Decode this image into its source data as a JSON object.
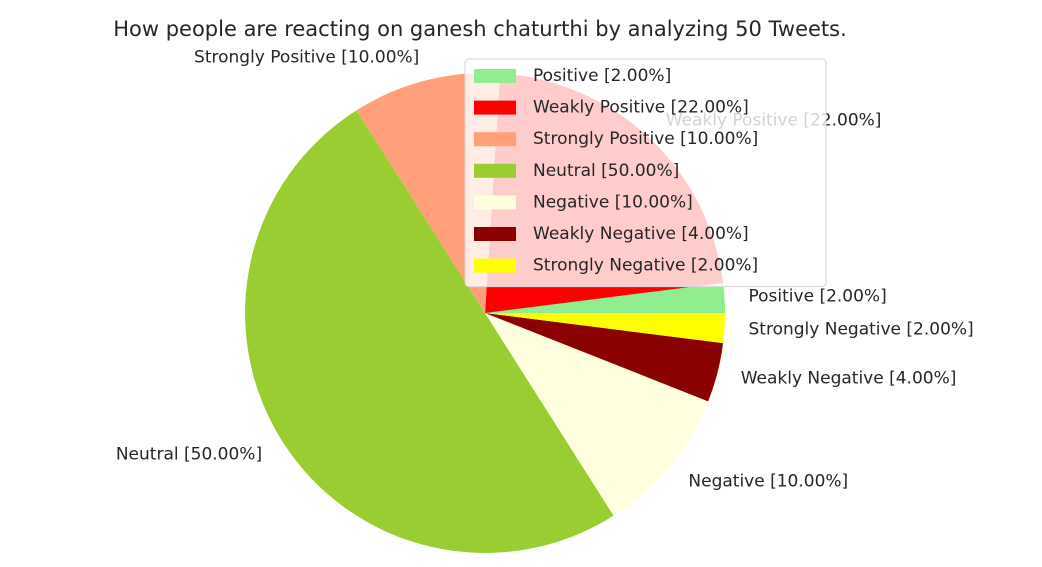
{
  "chart_data": {
    "type": "pie",
    "title": "How people are reacting on ganesh chaturthi by analyzing 50 Tweets.",
    "start_angle_deg": 0,
    "direction": "counterclockwise",
    "legend_position": "upper-right",
    "slices": [
      {
        "label": "Positive [2.00%]",
        "value": 2.0,
        "color": "#90ee90"
      },
      {
        "label": "Weakly Positive [22.00%]",
        "value": 22.0,
        "color": "#ff0000"
      },
      {
        "label": "Strongly Positive [10.00%]",
        "value": 10.0,
        "color": "#ffa07a"
      },
      {
        "label": "Neutral [50.00%]",
        "value": 50.0,
        "color": "#9acd32"
      },
      {
        "label": "Negative [10.00%]",
        "value": 10.0,
        "color": "#ffffe0"
      },
      {
        "label": "Weakly Negative [4.00%]",
        "value": 4.0,
        "color": "#8b0000"
      },
      {
        "label": "Strongly Negative [2.00%]",
        "value": 2.0,
        "color": "#ffff00"
      }
    ],
    "legend": {
      "entries": [
        {
          "label": "Positive [2.00%]",
          "color": "#90ee90"
        },
        {
          "label": "Weakly Positive [22.00%]",
          "color": "#ff0000"
        },
        {
          "label": "Strongly Positive [10.00%]",
          "color": "#ffa07a"
        },
        {
          "label": "Neutral [50.00%]",
          "color": "#9acd32"
        },
        {
          "label": "Negative [10.00%]",
          "color": "#ffffe0"
        },
        {
          "label": "Weakly Negative [4.00%]",
          "color": "#8b0000"
        },
        {
          "label": "Strongly Negative [2.00%]",
          "color": "#ffff00"
        }
      ]
    }
  }
}
